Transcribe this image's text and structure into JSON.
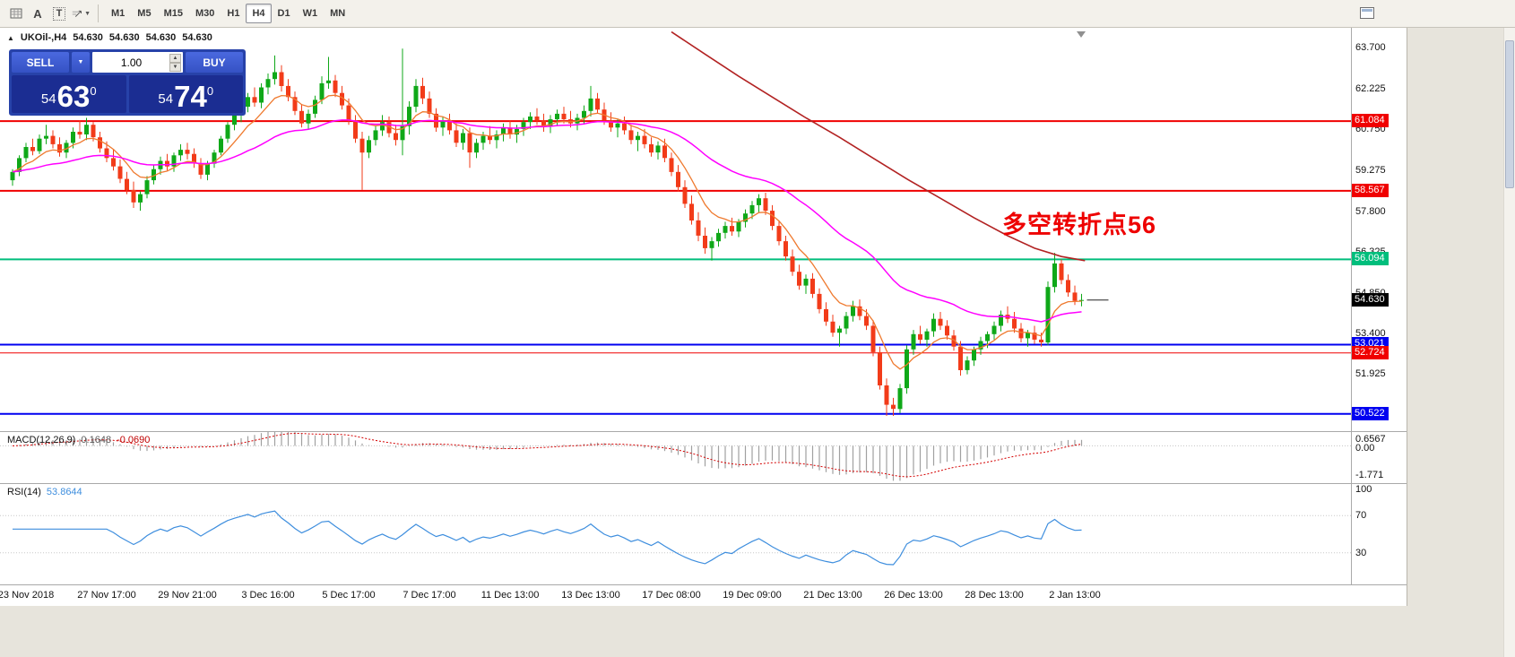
{
  "toolbar": {
    "icon_a": "A",
    "icon_t": "T",
    "timeframes": [
      "M1",
      "M5",
      "M15",
      "M30",
      "H1",
      "H4",
      "D1",
      "W1",
      "MN"
    ],
    "active_timeframe": "H4"
  },
  "chart": {
    "title": "UKOil-,H4",
    "open": "54.630",
    "high": "54.630",
    "low": "54.630",
    "close": "54.630",
    "annotation": {
      "text": "多空转折点56",
      "color": "#EE0000"
    },
    "current_price": {
      "value": 54.63,
      "badge_bg": "#000000"
    },
    "levels": [
      {
        "price": 61.084,
        "color": "#F00000",
        "width": 2
      },
      {
        "price": 58.567,
        "color": "#F00000",
        "width": 2
      },
      {
        "price": 56.094,
        "color": "#00BE7C",
        "width": 2
      },
      {
        "price": 53.021,
        "color": "#0000F0",
        "width": 2
      },
      {
        "price": 52.724,
        "color": "#F00000",
        "width": 1
      },
      {
        "price": 50.522,
        "color": "#0000F0",
        "width": 2
      }
    ],
    "price_axis": {
      "ticks": [
        63.7,
        62.225,
        60.75,
        59.275,
        57.8,
        56.325,
        54.85,
        53.4,
        51.925,
        50.45
      ]
    },
    "time_axis": {
      "labels": [
        {
          "i": 2,
          "t": "23 Nov 2018"
        },
        {
          "i": 14,
          "t": "27 Nov 17:00"
        },
        {
          "i": 26,
          "t": "29 Nov 21:00"
        },
        {
          "i": 38,
          "t": "3 Dec 16:00"
        },
        {
          "i": 50,
          "t": "5 Dec 17:00"
        },
        {
          "i": 62,
          "t": "7 Dec 17:00"
        },
        {
          "i": 74,
          "t": "11 Dec 13:00"
        },
        {
          "i": 86,
          "t": "13 Dec 13:00"
        },
        {
          "i": 98,
          "t": "17 Dec 08:00"
        },
        {
          "i": 110,
          "t": "19 Dec 09:00"
        },
        {
          "i": 122,
          "t": "21 Dec 13:00"
        },
        {
          "i": 134,
          "t": "26 Dec 13:00"
        },
        {
          "i": 146,
          "t": "28 Dec 13:00"
        },
        {
          "i": 158,
          "t": "2 Jan 13:00"
        }
      ]
    }
  },
  "one_click": {
    "sell_label": "SELL",
    "buy_label": "BUY",
    "volume": "1.00",
    "sell_price": {
      "prefix": "54",
      "big": "63",
      "sup": "0"
    },
    "buy_price": {
      "prefix": "54",
      "big": "74",
      "sup": "0"
    }
  },
  "macd": {
    "label": "MACD(12,26,9)",
    "main_value": "0.1648",
    "signal_value": "-0.0690",
    "axis_labels": [
      "0.6567",
      "0.00",
      "-1.771"
    ],
    "max": 0.6567,
    "min": -1.771
  },
  "rsi": {
    "label": "RSI(14)",
    "value": "53.8644",
    "axis_labels": [
      "100",
      "70",
      "30"
    ],
    "levels": [
      70,
      30
    ]
  },
  "chart_data": {
    "type": "candlestick",
    "symbol": "UKOil-",
    "period": "H4",
    "ylim": [
      49.9,
      64.45
    ],
    "candles": [
      [
        58.95,
        59.35,
        58.75,
        59.25
      ],
      [
        59.25,
        59.85,
        59.1,
        59.75
      ],
      [
        59.75,
        60.3,
        59.6,
        60.15
      ],
      [
        60.15,
        60.45,
        59.85,
        60.0
      ],
      [
        60.0,
        60.6,
        59.9,
        60.45
      ],
      [
        60.45,
        60.95,
        60.25,
        60.55
      ],
      [
        60.55,
        60.75,
        60.1,
        60.25
      ],
      [
        60.25,
        60.5,
        59.8,
        59.95
      ],
      [
        59.95,
        60.4,
        59.75,
        60.3
      ],
      [
        60.3,
        60.85,
        60.1,
        60.7
      ],
      [
        60.7,
        61.1,
        60.45,
        60.6
      ],
      [
        60.6,
        61.2,
        60.4,
        60.95
      ],
      [
        60.95,
        61.05,
        60.35,
        60.5
      ],
      [
        60.5,
        60.7,
        59.95,
        60.1
      ],
      [
        60.1,
        60.35,
        59.6,
        59.75
      ],
      [
        59.75,
        60.05,
        59.3,
        59.45
      ],
      [
        59.45,
        59.7,
        58.85,
        59.0
      ],
      [
        59.0,
        59.25,
        58.45,
        58.6
      ],
      [
        58.6,
        58.9,
        57.95,
        58.15
      ],
      [
        58.15,
        58.55,
        57.85,
        58.45
      ],
      [
        58.45,
        59.1,
        58.3,
        58.95
      ],
      [
        58.95,
        59.5,
        58.8,
        59.35
      ],
      [
        59.35,
        59.8,
        59.15,
        59.65
      ],
      [
        59.65,
        59.9,
        59.3,
        59.45
      ],
      [
        59.45,
        59.95,
        59.25,
        59.85
      ],
      [
        59.85,
        60.25,
        59.65,
        60.05
      ],
      [
        60.05,
        60.3,
        59.7,
        59.9
      ],
      [
        59.9,
        60.1,
        59.4,
        59.55
      ],
      [
        59.55,
        59.75,
        59.0,
        59.15
      ],
      [
        59.15,
        59.65,
        58.95,
        59.55
      ],
      [
        59.55,
        60.05,
        59.4,
        59.95
      ],
      [
        59.95,
        60.55,
        59.85,
        60.45
      ],
      [
        60.45,
        61.05,
        60.3,
        60.95
      ],
      [
        60.95,
        61.45,
        60.75,
        61.3
      ],
      [
        61.3,
        61.75,
        61.05,
        61.6
      ],
      [
        61.6,
        62.1,
        61.4,
        61.95
      ],
      [
        61.95,
        62.3,
        61.6,
        61.75
      ],
      [
        61.75,
        62.45,
        61.55,
        62.3
      ],
      [
        62.3,
        62.8,
        62.05,
        62.6
      ],
      [
        62.6,
        63.45,
        62.4,
        62.85
      ],
      [
        62.85,
        63.1,
        62.15,
        62.35
      ],
      [
        62.35,
        62.6,
        61.8,
        61.95
      ],
      [
        61.95,
        62.15,
        61.3,
        61.45
      ],
      [
        61.45,
        61.7,
        60.85,
        61.0
      ],
      [
        61.0,
        61.5,
        60.8,
        61.35
      ],
      [
        61.35,
        62.0,
        61.2,
        61.85
      ],
      [
        61.85,
        62.7,
        61.7,
        62.45
      ],
      [
        62.45,
        63.4,
        62.25,
        62.55
      ],
      [
        62.55,
        62.75,
        61.95,
        62.1
      ],
      [
        62.1,
        62.35,
        61.5,
        61.65
      ],
      [
        61.65,
        61.9,
        60.95,
        61.1
      ],
      [
        61.1,
        61.3,
        60.3,
        60.45
      ],
      [
        60.45,
        60.7,
        58.6,
        59.95
      ],
      [
        59.95,
        60.55,
        59.75,
        60.4
      ],
      [
        60.4,
        60.9,
        60.2,
        60.75
      ],
      [
        60.75,
        61.3,
        60.55,
        61.05
      ],
      [
        61.05,
        61.25,
        60.5,
        60.65
      ],
      [
        60.65,
        60.95,
        60.2,
        60.4
      ],
      [
        60.4,
        63.7,
        59.85,
        60.9
      ],
      [
        60.9,
        61.8,
        60.6,
        61.6
      ],
      [
        61.6,
        62.6,
        61.4,
        62.35
      ],
      [
        62.35,
        62.65,
        61.7,
        61.9
      ],
      [
        61.9,
        62.15,
        61.2,
        61.35
      ],
      [
        61.35,
        61.55,
        60.7,
        60.85
      ],
      [
        60.85,
        61.25,
        60.55,
        61.1
      ],
      [
        61.1,
        61.35,
        60.6,
        60.75
      ],
      [
        60.75,
        61.0,
        60.15,
        60.3
      ],
      [
        60.3,
        60.8,
        60.05,
        60.65
      ],
      [
        60.65,
        60.85,
        59.4,
        59.95
      ],
      [
        59.95,
        60.45,
        59.75,
        60.3
      ],
      [
        60.3,
        60.7,
        60.05,
        60.55
      ],
      [
        60.55,
        60.9,
        60.25,
        60.4
      ],
      [
        60.4,
        60.75,
        60.1,
        60.6
      ],
      [
        60.6,
        61.0,
        60.35,
        60.85
      ],
      [
        60.85,
        61.1,
        60.45,
        60.6
      ],
      [
        60.6,
        60.95,
        60.3,
        60.8
      ],
      [
        60.8,
        61.2,
        60.55,
        61.05
      ],
      [
        61.05,
        61.4,
        60.8,
        61.25
      ],
      [
        61.25,
        61.55,
        60.95,
        61.1
      ],
      [
        61.1,
        61.35,
        60.7,
        60.9
      ],
      [
        60.9,
        61.3,
        60.65,
        61.15
      ],
      [
        61.15,
        61.5,
        60.9,
        61.35
      ],
      [
        61.35,
        61.6,
        61.0,
        61.15
      ],
      [
        61.15,
        61.45,
        60.85,
        61.0
      ],
      [
        61.0,
        61.35,
        60.75,
        61.2
      ],
      [
        61.2,
        61.65,
        61.0,
        61.45
      ],
      [
        61.45,
        62.35,
        61.25,
        61.9
      ],
      [
        61.9,
        62.1,
        61.35,
        61.5
      ],
      [
        61.5,
        61.75,
        60.95,
        61.1
      ],
      [
        61.1,
        61.4,
        60.7,
        60.85
      ],
      [
        60.85,
        61.15,
        60.5,
        61.0
      ],
      [
        61.0,
        61.25,
        60.6,
        60.75
      ],
      [
        60.75,
        60.95,
        60.25,
        60.4
      ],
      [
        60.4,
        60.7,
        60.0,
        60.55
      ],
      [
        60.55,
        60.8,
        60.1,
        60.25
      ],
      [
        60.25,
        60.5,
        59.8,
        59.95
      ],
      [
        59.95,
        60.35,
        59.7,
        60.2
      ],
      [
        60.2,
        60.45,
        59.6,
        59.75
      ],
      [
        59.75,
        59.95,
        59.1,
        59.25
      ],
      [
        59.25,
        59.5,
        58.55,
        58.7
      ],
      [
        58.7,
        58.95,
        57.95,
        58.1
      ],
      [
        58.1,
        58.4,
        57.35,
        57.5
      ],
      [
        57.5,
        57.8,
        56.75,
        56.95
      ],
      [
        56.95,
        57.25,
        56.3,
        56.5
      ],
      [
        56.5,
        56.9,
        56.05,
        56.75
      ],
      [
        56.75,
        57.2,
        56.55,
        57.05
      ],
      [
        57.05,
        57.45,
        56.85,
        57.3
      ],
      [
        57.3,
        57.6,
        56.95,
        57.1
      ],
      [
        57.1,
        57.55,
        56.9,
        57.45
      ],
      [
        57.45,
        57.9,
        57.25,
        57.75
      ],
      [
        57.75,
        58.2,
        57.55,
        58.05
      ],
      [
        58.05,
        58.45,
        57.8,
        58.3
      ],
      [
        58.3,
        58.5,
        57.7,
        57.85
      ],
      [
        57.85,
        58.05,
        57.15,
        57.3
      ],
      [
        57.3,
        57.5,
        56.6,
        56.75
      ],
      [
        56.75,
        56.95,
        56.05,
        56.2
      ],
      [
        56.2,
        56.45,
        55.5,
        55.65
      ],
      [
        55.65,
        55.9,
        55.0,
        55.15
      ],
      [
        55.15,
        55.55,
        54.85,
        55.4
      ],
      [
        55.4,
        55.6,
        54.7,
        54.85
      ],
      [
        54.85,
        55.05,
        54.15,
        54.3
      ],
      [
        54.3,
        54.55,
        53.7,
        53.85
      ],
      [
        53.85,
        54.1,
        53.3,
        53.45
      ],
      [
        53.45,
        53.7,
        52.95,
        53.6
      ],
      [
        53.6,
        54.2,
        53.4,
        54.05
      ],
      [
        54.05,
        54.6,
        53.85,
        54.4
      ],
      [
        54.4,
        54.65,
        53.9,
        54.05
      ],
      [
        54.05,
        54.3,
        53.55,
        53.7
      ],
      [
        53.7,
        53.9,
        52.6,
        52.75
      ],
      [
        52.75,
        52.95,
        51.4,
        51.55
      ],
      [
        51.55,
        51.8,
        50.45,
        50.85
      ],
      [
        50.85,
        51.1,
        50.45,
        50.7
      ],
      [
        50.7,
        51.6,
        50.55,
        51.45
      ],
      [
        51.45,
        53.0,
        51.25,
        52.85
      ],
      [
        52.85,
        53.55,
        52.65,
        53.4
      ],
      [
        53.4,
        53.7,
        53.05,
        53.2
      ],
      [
        53.2,
        53.6,
        52.95,
        53.5
      ],
      [
        53.5,
        54.15,
        53.3,
        53.95
      ],
      [
        53.95,
        54.2,
        53.55,
        53.7
      ],
      [
        53.7,
        53.9,
        53.2,
        53.35
      ],
      [
        53.35,
        53.55,
        52.8,
        52.95
      ],
      [
        52.95,
        53.15,
        51.9,
        52.1
      ],
      [
        52.1,
        52.6,
        51.95,
        52.45
      ],
      [
        52.45,
        52.95,
        52.25,
        52.85
      ],
      [
        52.85,
        53.3,
        52.65,
        53.15
      ],
      [
        53.15,
        53.5,
        52.9,
        53.4
      ],
      [
        53.4,
        53.85,
        53.2,
        53.7
      ],
      [
        53.7,
        54.25,
        53.5,
        54.1
      ],
      [
        54.1,
        54.4,
        53.8,
        53.95
      ],
      [
        53.95,
        54.2,
        53.45,
        53.6
      ],
      [
        53.6,
        53.8,
        53.1,
        53.25
      ],
      [
        53.25,
        53.55,
        52.95,
        53.45
      ],
      [
        53.45,
        53.7,
        53.05,
        53.2
      ],
      [
        53.2,
        53.45,
        52.95,
        53.1
      ],
      [
        53.1,
        55.3,
        53.0,
        55.1
      ],
      [
        55.1,
        56.33,
        54.9,
        55.95
      ],
      [
        55.95,
        56.1,
        55.2,
        55.35
      ],
      [
        55.35,
        55.55,
        54.75,
        54.9
      ],
      [
        54.9,
        55.15,
        54.45,
        54.6
      ],
      [
        54.6,
        54.85,
        54.4,
        54.63
      ]
    ],
    "long_ma_points": [
      [
        98,
        64.3
      ],
      [
        103,
        63.5
      ],
      [
        108,
        62.7
      ],
      [
        113,
        61.95
      ],
      [
        118,
        61.2
      ],
      [
        123,
        60.5
      ],
      [
        128,
        59.75
      ],
      [
        133,
        59.0
      ],
      [
        138,
        58.3
      ],
      [
        143,
        57.6
      ],
      [
        148,
        56.95
      ],
      [
        152,
        56.5
      ],
      [
        156,
        56.2
      ],
      [
        159.5,
        56.05
      ]
    ],
    "colors": {
      "up": "#0FA818",
      "down": "#F23B19",
      "ma_fast": "#EF7A2F",
      "ma_mid": "#FF00FF",
      "ma_long": "#B22222",
      "rsi": "#3E8EDE",
      "macd_hist": "#A0A0A0",
      "macd_signal": "#D40000"
    }
  }
}
